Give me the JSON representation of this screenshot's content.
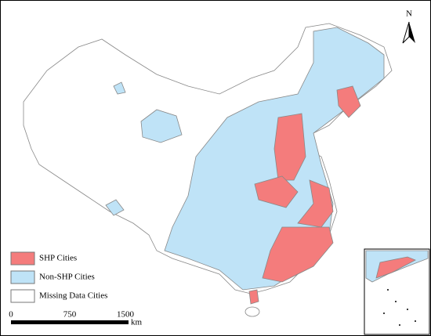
{
  "legend": {
    "items": [
      {
        "label": "SHP Cities",
        "color": "#f47c7c"
      },
      {
        "label": "Non-SHP Cities",
        "color": "#bfe3f7"
      },
      {
        "label": "Missing Data Cities",
        "color": "#ffffff"
      }
    ]
  },
  "scale_bar": {
    "labels": [
      "0",
      "750",
      "1500"
    ],
    "unit": "km"
  },
  "north_arrow": {
    "label": "N"
  }
}
